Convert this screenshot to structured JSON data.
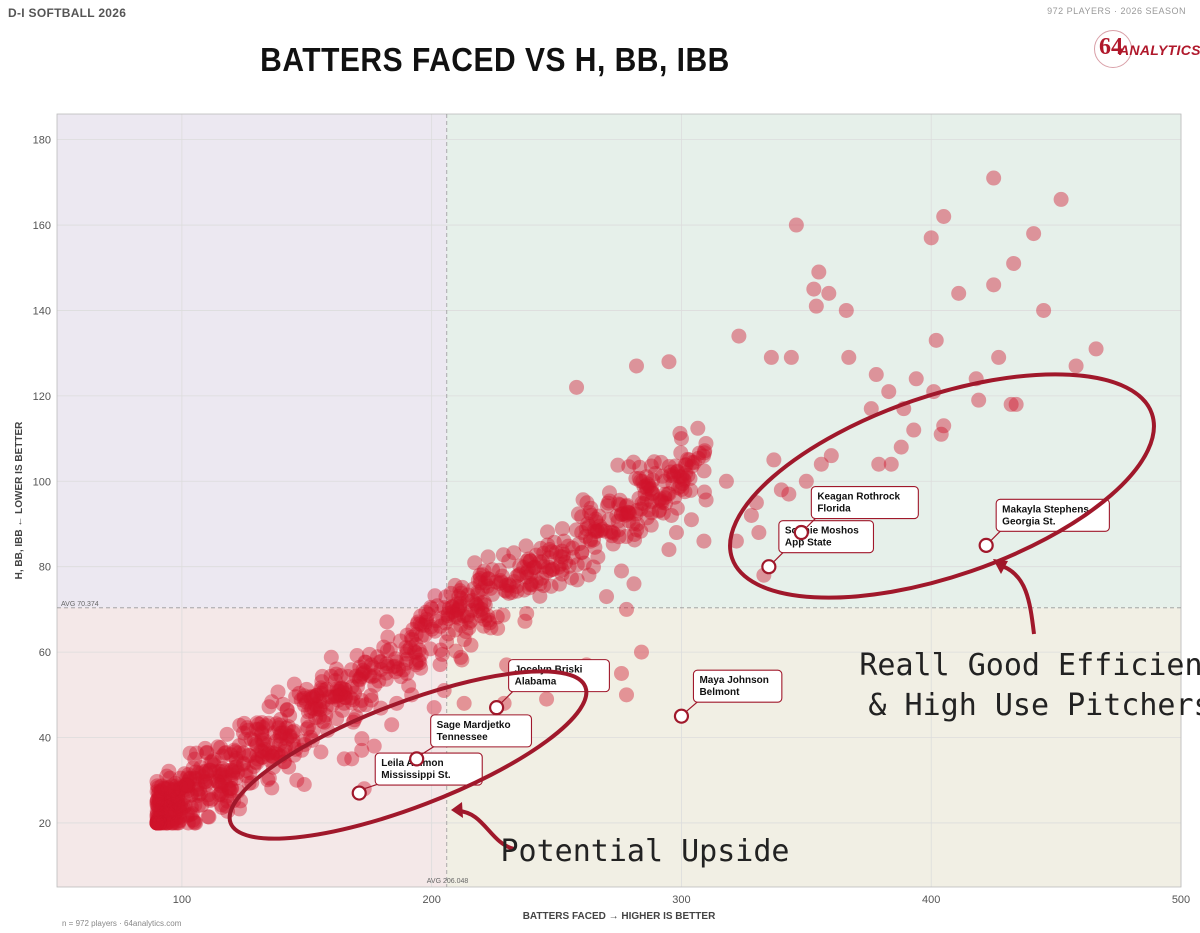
{
  "header": {
    "left": "D-I SOFTBALL 2026",
    "right": "972 PLAYERS · 2026 SEASON"
  },
  "logo": {
    "number": "64",
    "text": "ANALYTICS"
  },
  "footer": "n = 972 players · 64analytics.com",
  "colors": {
    "point": "#d0142c",
    "annotation": "#a0182b",
    "q_top_left": "#ece8f1",
    "q_top_right": "#e6f0ea",
    "q_bottom_left": "#f4e8e8",
    "q_bottom_right": "#f1efe4"
  },
  "chart_data": {
    "type": "scatter",
    "title": "BATTERS FACED VS H, BB, IBB",
    "xlabel": "BATTERS FACED → HIGHER IS BETTER",
    "ylabel": "H, BB, IBB ← LOWER IS BETTER",
    "xlim": [
      50,
      500
    ],
    "ylim": [
      5,
      186
    ],
    "xticks": [
      100,
      200,
      300,
      400,
      500
    ],
    "yticks": [
      20,
      40,
      60,
      80,
      100,
      120,
      140,
      160,
      180
    ],
    "grid": true,
    "count": 972,
    "avg_x": 206.048,
    "avg_y": 70.374,
    "avg_x_label": "AVG 206.048",
    "avg_y_label": "AVG 70.374",
    "highlighted": [
      {
        "name": "Leila Ammon",
        "team": "Mississippi St.",
        "x": 171,
        "y": 27
      },
      {
        "name": "Sage Mardjetko",
        "team": "Tennessee",
        "x": 194,
        "y": 35
      },
      {
        "name": "Jocelyn Briski",
        "team": "Alabama",
        "x": 226,
        "y": 47
      },
      {
        "name": "Maya Johnson",
        "team": "Belmont",
        "x": 300,
        "y": 45
      },
      {
        "name": "Sophie Moshos",
        "team": "App State",
        "x": 335,
        "y": 80
      },
      {
        "name": "Keagan Rothrock",
        "team": "Florida",
        "x": 348,
        "y": 88
      },
      {
        "name": "Makayla Stephens",
        "team": "Georgia St.",
        "x": 422,
        "y": 85
      }
    ],
    "outliers": [
      [
        425,
        171
      ],
      [
        452,
        166
      ],
      [
        346,
        160
      ],
      [
        405,
        162
      ],
      [
        400,
        157
      ],
      [
        441,
        158
      ],
      [
        355,
        149
      ],
      [
        433,
        151
      ],
      [
        353,
        145
      ],
      [
        359,
        144
      ],
      [
        411,
        144
      ],
      [
        425,
        146
      ],
      [
        354,
        141
      ],
      [
        366,
        140
      ],
      [
        445,
        140
      ],
      [
        402,
        133
      ],
      [
        466,
        131
      ],
      [
        323,
        134
      ],
      [
        378,
        125
      ],
      [
        394,
        124
      ],
      [
        418,
        124
      ],
      [
        458,
        127
      ],
      [
        344,
        129
      ],
      [
        336,
        129
      ],
      [
        367,
        129
      ],
      [
        427,
        129
      ],
      [
        295,
        128
      ],
      [
        282,
        127
      ],
      [
        258,
        122
      ],
      [
        383,
        121
      ],
      [
        401,
        121
      ],
      [
        419,
        119
      ],
      [
        432,
        118
      ],
      [
        434,
        118
      ],
      [
        405,
        113
      ],
      [
        404,
        111
      ],
      [
        300,
        110
      ],
      [
        376,
        117
      ],
      [
        389,
        117
      ],
      [
        393,
        112
      ],
      [
        388,
        108
      ],
      [
        379,
        104
      ],
      [
        384,
        104
      ],
      [
        360,
        106
      ],
      [
        356,
        104
      ],
      [
        350,
        100
      ],
      [
        343,
        97
      ],
      [
        340,
        98
      ],
      [
        330,
        95
      ],
      [
        328,
        92
      ],
      [
        322,
        86
      ],
      [
        333,
        78
      ],
      [
        295,
        84
      ],
      [
        291,
        93
      ],
      [
        296,
        92
      ],
      [
        276,
        79
      ],
      [
        281,
        76
      ],
      [
        270,
        73
      ],
      [
        278,
        70
      ],
      [
        284,
        60
      ],
      [
        276,
        55
      ],
      [
        262,
        57
      ],
      [
        278,
        50
      ],
      [
        251,
        53
      ],
      [
        230,
        57
      ],
      [
        243,
        56
      ],
      [
        236,
        53
      ],
      [
        229,
        48
      ],
      [
        246,
        49
      ],
      [
        213,
        48
      ],
      [
        205,
        51
      ],
      [
        201,
        47
      ],
      [
        192,
        50
      ],
      [
        186,
        48
      ],
      [
        184,
        43
      ],
      [
        177,
        38
      ],
      [
        172,
        37
      ],
      [
        168,
        35
      ],
      [
        165,
        35
      ],
      [
        182,
        31
      ],
      [
        173,
        28
      ],
      [
        146,
        30
      ],
      [
        149,
        29
      ],
      [
        300,
        101
      ],
      [
        318,
        100
      ],
      [
        337,
        105
      ],
      [
        331,
        88
      ],
      [
        309,
        86
      ],
      [
        304,
        91
      ],
      [
        298,
        88
      ],
      [
        283,
        96
      ],
      [
        275,
        87
      ],
      [
        253,
        86
      ]
    ],
    "cluster_note": "The remaining points form a dense band rising from about (90, 22) to (300, 110)."
  },
  "callouts": {
    "top": "Reall Good Efficient",
    "top2": "& High Use Pitchers",
    "bottom": "Potential Upside"
  }
}
